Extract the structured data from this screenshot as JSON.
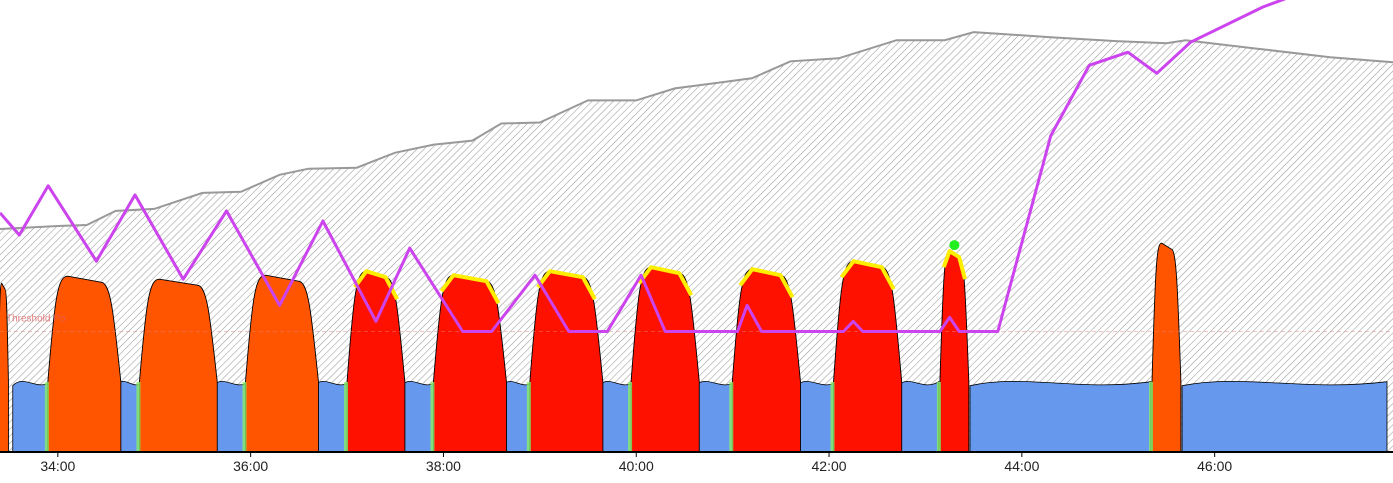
{
  "chart_data": {
    "type": "area",
    "x_unit": "minutes",
    "xlim": [
      33.4,
      47.85
    ],
    "ylim": [
      0,
      450
    ],
    "x_ticks": [
      {
        "value": 34,
        "label": "34:00"
      },
      {
        "value": 36,
        "label": "36:00"
      },
      {
        "value": 38,
        "label": "38:00"
      },
      {
        "value": 40,
        "label": "40:00"
      },
      {
        "value": 42,
        "label": "42:00"
      },
      {
        "value": 44,
        "label": "44:00"
      },
      {
        "value": 46,
        "label": "46:00"
      }
    ],
    "reference_line": {
      "label": "Threshold Po",
      "y": 120
    },
    "colors": {
      "easy": "#6699ee",
      "tempo": "#88ee66",
      "hard": "#ff5500",
      "max": "#ff1100",
      "above_limit": "#ffee00",
      "magenta": "#cc44ee",
      "hatch": "#999999",
      "marker": "#22ee22",
      "axis": "#000000"
    },
    "background_envelope": [
      [
        33.4,
        222
      ],
      [
        34.0,
        225
      ],
      [
        34.3,
        226
      ],
      [
        34.6,
        240
      ],
      [
        35.0,
        242
      ],
      [
        35.5,
        258
      ],
      [
        35.9,
        259
      ],
      [
        36.3,
        276
      ],
      [
        36.6,
        282
      ],
      [
        37.1,
        283
      ],
      [
        37.5,
        298
      ],
      [
        37.9,
        306
      ],
      [
        38.3,
        310
      ],
      [
        38.6,
        327
      ],
      [
        39.0,
        328
      ],
      [
        39.5,
        350
      ],
      [
        40.0,
        350
      ],
      [
        40.4,
        362
      ],
      [
        40.8,
        367
      ],
      [
        41.2,
        372
      ],
      [
        41.6,
        389
      ],
      [
        42.1,
        392
      ],
      [
        42.7,
        410
      ],
      [
        43.2,
        410
      ],
      [
        43.5,
        418
      ],
      [
        44.3,
        413
      ],
      [
        45.0,
        409
      ],
      [
        45.5,
        407
      ],
      [
        45.7,
        410
      ],
      [
        46.4,
        402
      ],
      [
        47.2,
        393
      ],
      [
        47.85,
        388
      ]
    ],
    "efforts": [
      {
        "start": 33.4,
        "end": 33.47,
        "value": 168,
        "zone": "hard"
      },
      {
        "start": 34.0,
        "end": 34.55,
        "value": 175,
        "zone": "hard"
      },
      {
        "start": 34.95,
        "end": 35.55,
        "value": 172,
        "zone": "hard"
      },
      {
        "start": 36.05,
        "end": 36.6,
        "value": 176,
        "zone": "hard"
      },
      {
        "start": 37.1,
        "end": 37.5,
        "value": 180,
        "zone": "max"
      },
      {
        "start": 38.0,
        "end": 38.55,
        "value": 176,
        "zone": "max"
      },
      {
        "start": 39.0,
        "end": 39.55,
        "value": 180,
        "zone": "max"
      },
      {
        "start": 40.05,
        "end": 40.55,
        "value": 184,
        "zone": "max"
      },
      {
        "start": 41.1,
        "end": 41.6,
        "value": 182,
        "zone": "max"
      },
      {
        "start": 42.15,
        "end": 42.65,
        "value": 190,
        "zone": "max"
      },
      {
        "start": 43.2,
        "end": 43.4,
        "value": 200,
        "zone": "max"
      },
      {
        "start": 45.4,
        "end": 45.6,
        "value": 208,
        "zone": "hard"
      }
    ],
    "recovery_level": 70,
    "magenta_series": [
      [
        33.4,
        238
      ],
      [
        33.6,
        216
      ],
      [
        33.9,
        265
      ],
      [
        34.4,
        190
      ],
      [
        34.8,
        256
      ],
      [
        35.3,
        172
      ],
      [
        35.75,
        240
      ],
      [
        36.3,
        146
      ],
      [
        36.75,
        230
      ],
      [
        37.3,
        130
      ],
      [
        37.65,
        203
      ],
      [
        38.2,
        120
      ],
      [
        38.5,
        120
      ],
      [
        38.95,
        176
      ],
      [
        39.3,
        120
      ],
      [
        39.7,
        120
      ],
      [
        40.05,
        176
      ],
      [
        40.3,
        120
      ],
      [
        41.05,
        120
      ],
      [
        41.15,
        146
      ],
      [
        41.3,
        120
      ],
      [
        42.15,
        120
      ],
      [
        42.25,
        130
      ],
      [
        42.35,
        120
      ],
      [
        43.15,
        120
      ],
      [
        43.25,
        134
      ],
      [
        43.35,
        120
      ],
      [
        43.75,
        120
      ],
      [
        44.3,
        315
      ],
      [
        44.7,
        385
      ],
      [
        45.1,
        398
      ],
      [
        45.4,
        377
      ],
      [
        45.75,
        408
      ],
      [
        46.5,
        443
      ],
      [
        47.15,
        466
      ],
      [
        47.5,
        472
      ],
      [
        47.85,
        470
      ]
    ],
    "marker_point": {
      "x": 43.3,
      "y": 206
    }
  }
}
